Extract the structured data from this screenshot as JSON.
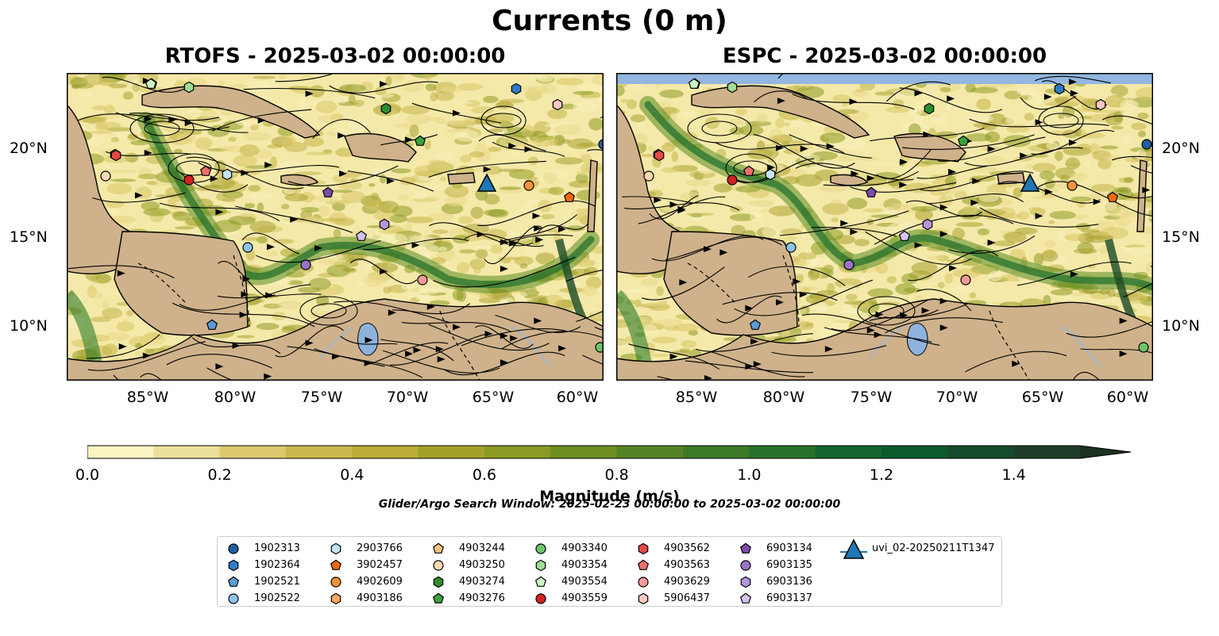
{
  "figure": {
    "title": "Currents (0 m)",
    "panels": [
      {
        "title": "RTOFS - 2025-03-02 00:00:00"
      },
      {
        "title": "ESPC - 2025-03-02 00:00:00"
      }
    ],
    "lon_ticks": [
      "85°W",
      "80°W",
      "75°W",
      "70°W",
      "65°W",
      "60°W"
    ],
    "lat_ticks": [
      "20°N",
      "15°N",
      "10°N"
    ],
    "colorbar": {
      "title": "Magnitude (m/s)",
      "ticks": [
        "0.0",
        "0.2",
        "0.4",
        "0.6",
        "0.8",
        "1.0",
        "1.2",
        "1.4"
      ],
      "colors": [
        "#fbf5c4",
        "#ecdf9c",
        "#dcc86d",
        "#cdb84d",
        "#bcad38",
        "#a4a12a",
        "#8a9a22",
        "#6e8e22",
        "#548224",
        "#3d7a27",
        "#27722a",
        "#12662d",
        "#0d5a2d",
        "#164a2c",
        "#1e3d28",
        "#1c3120",
        "#182818"
      ]
    },
    "search_window": "Glider/Argo Search Window: 2025-02-23 00:00:00 to 2025-03-02 00:00:00",
    "legend": [
      {
        "label": "1902313",
        "marker": "circle",
        "color": "#1f5f9f"
      },
      {
        "label": "1902364",
        "marker": "hexagon",
        "color": "#2e7bc8"
      },
      {
        "label": "1902521",
        "marker": "pentagon",
        "color": "#5a9bd6"
      },
      {
        "label": "1902522",
        "marker": "circle",
        "color": "#8ec3ec"
      },
      {
        "label": "2903766",
        "marker": "hexagon",
        "color": "#c6e4f7"
      },
      {
        "label": "3902457",
        "marker": "pentagon",
        "color": "#f06a0c"
      },
      {
        "label": "4902609",
        "marker": "circle",
        "color": "#f6923a"
      },
      {
        "label": "4903186",
        "marker": "hexagon",
        "color": "#f9a85c"
      },
      {
        "label": "4903244",
        "marker": "pentagon",
        "color": "#fbbf86"
      },
      {
        "label": "4903250",
        "marker": "circle",
        "color": "#fdd9b4"
      },
      {
        "label": "4903274",
        "marker": "hexagon",
        "color": "#2e8e2e"
      },
      {
        "label": "4903276",
        "marker": "pentagon",
        "color": "#3aa33a"
      },
      {
        "label": "4903340",
        "marker": "circle",
        "color": "#6cc46c"
      },
      {
        "label": "4903354",
        "marker": "hexagon",
        "color": "#a0dc96"
      },
      {
        "label": "4903554",
        "marker": "pentagon",
        "color": "#cdf3c2"
      },
      {
        "label": "4903559",
        "marker": "circle",
        "color": "#d32020"
      },
      {
        "label": "4903562",
        "marker": "hexagon",
        "color": "#e44848"
      },
      {
        "label": "4903563",
        "marker": "pentagon",
        "color": "#eb6e6e"
      },
      {
        "label": "4903629",
        "marker": "circle",
        "color": "#f59999"
      },
      {
        "label": "5906437",
        "marker": "hexagon",
        "color": "#fbc6c2"
      },
      {
        "label": "6903134",
        "marker": "pentagon",
        "color": "#7a4ca8"
      },
      {
        "label": "6903135",
        "marker": "circle",
        "color": "#9a72c8"
      },
      {
        "label": "6903136",
        "marker": "hexagon",
        "color": "#b496dc"
      },
      {
        "label": "6903137",
        "marker": "pentagon",
        "color": "#d6c2f0"
      },
      {
        "label": "uvi_02-20250211T1347",
        "marker": "triangle-line",
        "color": "#1f77b4"
      }
    ]
  }
}
